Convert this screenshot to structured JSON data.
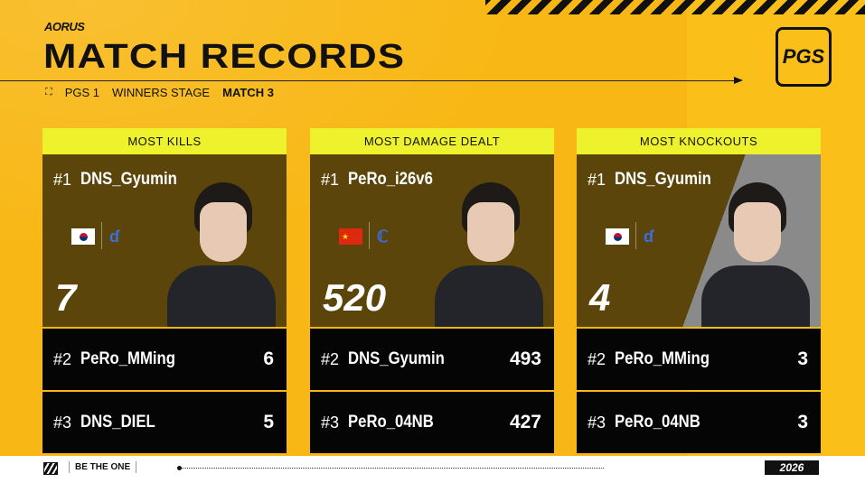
{
  "header": {
    "sponsor": "AORUS",
    "title": "MATCH RECORDS",
    "event": "PGS 1",
    "stage": "WINNERS STAGE",
    "match": "MATCH 3",
    "logo": "PGS"
  },
  "cards": [
    {
      "title": "MOST KILLS",
      "top": {
        "rank": "#1",
        "name": "DNS_Gyumin",
        "value": "7",
        "flag": "south-korea",
        "team": "DNS"
      },
      "rows": [
        {
          "rank": "#2",
          "name": "PeRo_MMing",
          "value": "6"
        },
        {
          "rank": "#3",
          "name": "DNS_DIEL",
          "value": "5"
        }
      ]
    },
    {
      "title": "MOST DAMAGE DEALT",
      "top": {
        "rank": "#1",
        "name": "PeRo_i26v6",
        "value": "520",
        "flag": "china",
        "team": "PeRo"
      },
      "rows": [
        {
          "rank": "#2",
          "name": "DNS_Gyumin",
          "value": "493"
        },
        {
          "rank": "#3",
          "name": "PeRo_04NB",
          "value": "427"
        }
      ]
    },
    {
      "title": "MOST KNOCKOUTS",
      "top": {
        "rank": "#1",
        "name": "DNS_Gyumin",
        "value": "4",
        "flag": "south-korea",
        "team": "DNS"
      },
      "rows": [
        {
          "rank": "#2",
          "name": "PeRo_MMing",
          "value": "3"
        },
        {
          "rank": "#3",
          "name": "PeRo_04NB",
          "value": "3"
        }
      ]
    }
  ],
  "footer": {
    "slogan": "BE THE ONE",
    "year": "2026"
  },
  "colors": {
    "background": "#f8b714",
    "card_header": "#eef22c",
    "card_top": "#5b450a",
    "row": "#050505"
  }
}
